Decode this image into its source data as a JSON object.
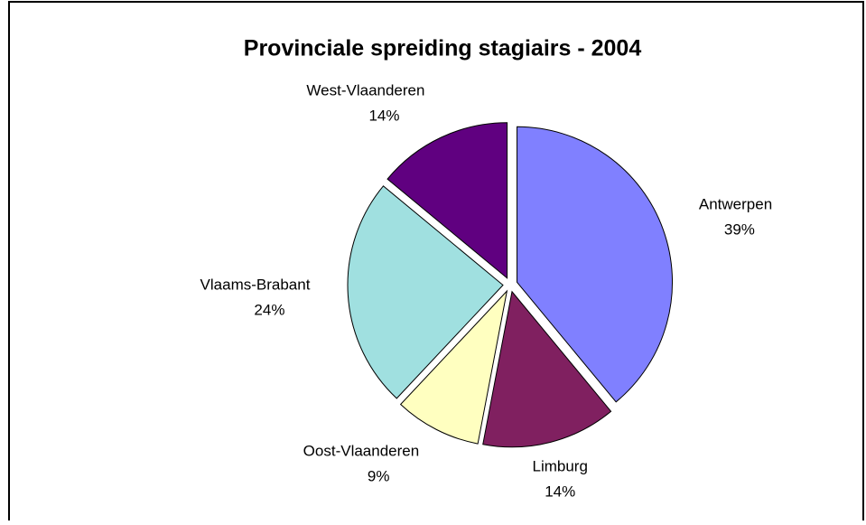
{
  "chart_data": {
    "type": "pie",
    "title": "Provinciale spreiding stagiairs - 2004",
    "categories": [
      "Antwerpen",
      "Limburg",
      "Oost-Vlaanderen",
      "Vlaams-Brabant",
      "West-Vlaanderen"
    ],
    "values": [
      39,
      14,
      9,
      24,
      14
    ],
    "value_labels": [
      "39%",
      "14%",
      "9%",
      "24%",
      "14%"
    ],
    "colors": [
      "#8080ff",
      "#802060",
      "#ffffc0",
      "#a0e0e0",
      "#600080"
    ]
  }
}
